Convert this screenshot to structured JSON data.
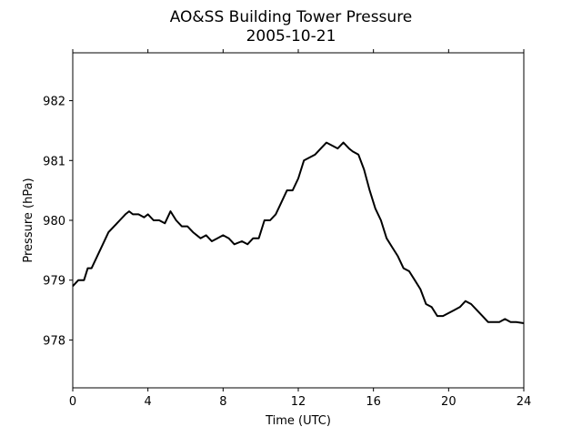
{
  "chart_data": {
    "type": "line",
    "title": "AO&SS Building Tower Pressure",
    "subtitle": "2005-10-21",
    "xlabel": "Time (UTC)",
    "ylabel": "Pressure (hPa)",
    "xlim": [
      0,
      24
    ],
    "ylim": [
      977.2,
      982.8
    ],
    "xticks": [
      0,
      4,
      8,
      12,
      16,
      20,
      24
    ],
    "yticks": [
      978,
      979,
      980,
      981,
      982
    ],
    "grid": false,
    "line_color": "#000000",
    "series": [
      {
        "x": [
          0.0,
          0.3,
          0.6,
          0.8,
          1.0,
          1.3,
          1.6,
          1.9,
          2.2,
          2.5,
          2.8,
          3.0,
          3.2,
          3.5,
          3.8,
          4.0,
          4.3,
          4.6,
          4.9,
          5.2,
          5.5,
          5.8,
          6.1,
          6.4,
          6.8,
          7.1,
          7.4,
          7.7,
          8.0,
          8.3,
          8.6,
          9.0,
          9.3,
          9.6,
          9.9,
          10.2,
          10.5,
          10.8,
          11.1,
          11.4,
          11.7,
          12.0,
          12.3,
          12.6,
          12.9,
          13.2,
          13.5,
          13.8,
          14.1,
          14.4,
          14.7,
          14.9,
          15.2,
          15.5,
          15.8,
          16.1,
          16.4,
          16.7,
          17.0,
          17.3,
          17.6,
          17.9,
          18.2,
          18.5,
          18.8,
          19.1,
          19.4,
          19.7,
          20.0,
          20.3,
          20.6,
          20.9,
          21.2,
          21.5,
          21.8,
          22.1,
          22.4,
          22.7,
          23.0,
          23.3,
          23.6,
          24.0
        ],
        "y": [
          978.9,
          979.0,
          979.0,
          979.2,
          979.2,
          979.4,
          979.6,
          979.8,
          979.9,
          980.0,
          980.1,
          980.15,
          980.1,
          980.1,
          980.05,
          980.1,
          980.0,
          980.0,
          979.95,
          980.15,
          980.0,
          979.9,
          979.9,
          979.8,
          979.7,
          979.75,
          979.65,
          979.7,
          979.75,
          979.7,
          979.6,
          979.65,
          979.6,
          979.7,
          979.7,
          980.0,
          980.0,
          980.1,
          980.3,
          980.5,
          980.5,
          980.7,
          981.0,
          981.05,
          981.1,
          981.2,
          981.3,
          981.25,
          981.2,
          981.3,
          981.2,
          981.15,
          981.1,
          980.85,
          980.5,
          980.2,
          980.0,
          979.7,
          979.55,
          979.4,
          979.2,
          979.15,
          979.0,
          978.85,
          978.6,
          978.55,
          978.4,
          978.4,
          978.45,
          978.5,
          978.55,
          978.65,
          978.6,
          978.5,
          978.4,
          978.3,
          978.3,
          978.3,
          978.35,
          978.3,
          978.3,
          978.28
        ]
      }
    ]
  }
}
